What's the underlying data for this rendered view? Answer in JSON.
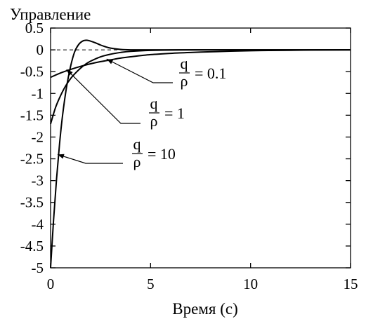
{
  "chart_data": {
    "type": "line",
    "title": "",
    "ylabel": "Управление",
    "xlabel": "Время (с)",
    "xlim": [
      0,
      15
    ],
    "ylim": [
      -5,
      0.5
    ],
    "xticks": [
      0,
      5,
      10,
      15
    ],
    "xtick_labels": [
      "0",
      "5",
      "10",
      "15"
    ],
    "yticks": [
      0.5,
      0,
      -0.5,
      -1,
      -1.5,
      -2,
      -2.5,
      -3,
      -3.5,
      -4,
      -4.5,
      -5
    ],
    "ytick_labels": [
      "0.5",
      "0",
      "-0.5",
      "-1",
      "-1.5",
      "-2",
      "-2.5",
      "-3",
      "-3.5",
      "-4",
      "-4.5",
      "-5"
    ],
    "grid": false,
    "reference_line": {
      "y": 0,
      "style": "dashed"
    },
    "series": [
      {
        "name": "q/ρ = 0.1",
        "ratio_label": "0.1",
        "x": [
          0,
          0.5,
          1,
          1.5,
          2,
          2.5,
          3,
          3.5,
          4,
          5,
          6,
          7,
          8,
          9,
          10,
          11,
          12,
          13,
          15
        ],
        "y": [
          -0.63,
          -0.53,
          -0.45,
          -0.38,
          -0.32,
          -0.27,
          -0.23,
          -0.19,
          -0.16,
          -0.11,
          -0.08,
          -0.06,
          -0.045,
          -0.03,
          -0.02,
          -0.015,
          -0.01,
          -0.005,
          0
        ]
      },
      {
        "name": "q/ρ = 1",
        "ratio_label": "1",
        "x": [
          0,
          0.25,
          0.5,
          0.75,
          1,
          1.25,
          1.5,
          1.75,
          2,
          2.5,
          3,
          3.5,
          4,
          5,
          6,
          8,
          10,
          12,
          15
        ],
        "y": [
          -1.7,
          -1.32,
          -1.05,
          -0.83,
          -0.66,
          -0.53,
          -0.42,
          -0.33,
          -0.26,
          -0.16,
          -0.1,
          -0.06,
          -0.035,
          -0.012,
          -0.004,
          0,
          0,
          0,
          0
        ]
      },
      {
        "name": "q/ρ = 10",
        "ratio_label": "10",
        "x": [
          0,
          0.15,
          0.3,
          0.45,
          0.6,
          0.8,
          1,
          1.2,
          1.4,
          1.6,
          1.8,
          2,
          2.25,
          2.5,
          2.75,
          3,
          3.5,
          4,
          5,
          6,
          15
        ],
        "y": [
          -5,
          -3.9,
          -2.95,
          -2.15,
          -1.5,
          -0.85,
          -0.38,
          -0.05,
          0.12,
          0.2,
          0.22,
          0.2,
          0.16,
          0.11,
          0.07,
          0.04,
          0.01,
          0,
          0,
          0,
          0
        ]
      }
    ],
    "annotations": [
      {
        "numerator": "q",
        "denominator": "ρ",
        "value_text": "= 0.1",
        "series": 0
      },
      {
        "numerator": "q",
        "denominator": "ρ",
        "value_text": "= 1",
        "series": 1
      },
      {
        "numerator": "q",
        "denominator": "ρ",
        "value_text": "= 10",
        "series": 2
      }
    ]
  }
}
